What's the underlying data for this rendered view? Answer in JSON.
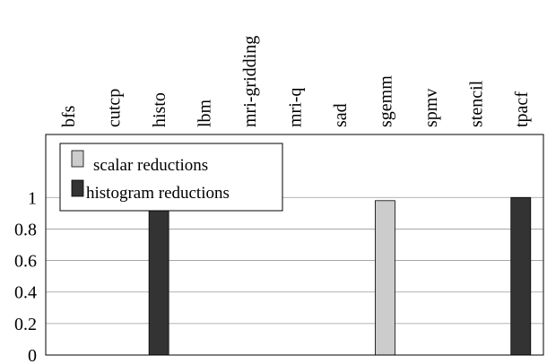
{
  "chart_data": {
    "type": "bar",
    "categories": [
      "bfs",
      "cutcp",
      "histo",
      "lbm",
      "mri-gridding",
      "mri-q",
      "sad",
      "sgemm",
      "spmv",
      "stencil",
      "tpacf"
    ],
    "series": [
      {
        "name": "scalar reductions",
        "color": "#cccccc",
        "values": [
          0,
          0,
          0,
          0,
          0,
          0,
          0,
          0.98,
          0,
          0,
          0
        ]
      },
      {
        "name": "histogram reductions",
        "color": "#333333",
        "values": [
          0,
          0,
          0.94,
          0,
          0,
          0,
          0,
          0,
          0,
          0,
          1.0
        ]
      }
    ],
    "y_ticks": [
      "0",
      "0.2",
      "0.4",
      "0.6",
      "0.8",
      "1"
    ],
    "ylim": [
      0,
      1.4
    ],
    "grid": true,
    "legend": "top-left",
    "title": "",
    "xlabel": "",
    "ylabel": ""
  }
}
